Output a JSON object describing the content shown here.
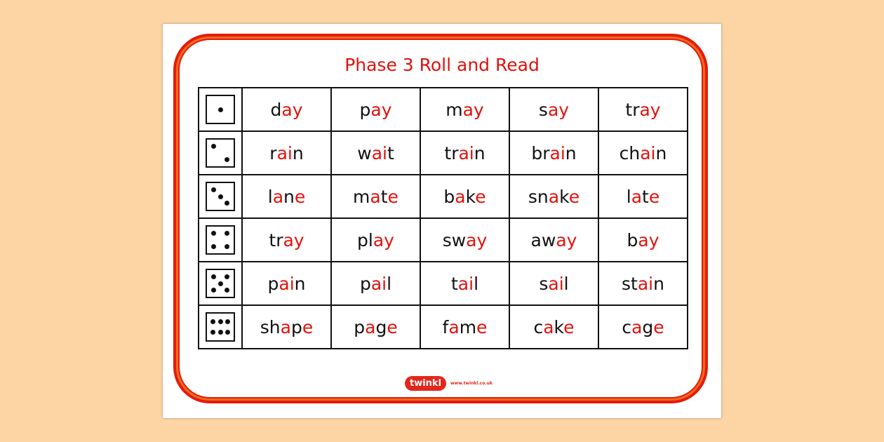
{
  "title": "Phase 3 Roll and Read",
  "colors": {
    "accent": "#e3120c",
    "background": "#fdd4a4"
  },
  "rows": [
    {
      "die": 1,
      "words": [
        [
          [
            "d",
            0
          ],
          [
            "ay",
            1
          ]
        ],
        [
          [
            "p",
            0
          ],
          [
            "ay",
            1
          ]
        ],
        [
          [
            "m",
            0
          ],
          [
            "ay",
            1
          ]
        ],
        [
          [
            "s",
            0
          ],
          [
            "ay",
            1
          ]
        ],
        [
          [
            "tr",
            0
          ],
          [
            "ay",
            1
          ]
        ]
      ]
    },
    {
      "die": 2,
      "words": [
        [
          [
            "r",
            0
          ],
          [
            "ai",
            1
          ],
          [
            "n",
            0
          ]
        ],
        [
          [
            "w",
            0
          ],
          [
            "ai",
            1
          ],
          [
            "t",
            0
          ]
        ],
        [
          [
            "tr",
            0
          ],
          [
            "ai",
            1
          ],
          [
            "n",
            0
          ]
        ],
        [
          [
            "br",
            0
          ],
          [
            "ai",
            1
          ],
          [
            "n",
            0
          ]
        ],
        [
          [
            "ch",
            0
          ],
          [
            "ai",
            1
          ],
          [
            "n",
            0
          ]
        ]
      ]
    },
    {
      "die": 3,
      "words": [
        [
          [
            "l",
            0
          ],
          [
            "a",
            1
          ],
          [
            "n",
            0
          ],
          [
            "e",
            1
          ]
        ],
        [
          [
            "m",
            0
          ],
          [
            "a",
            1
          ],
          [
            "t",
            0
          ],
          [
            "e",
            1
          ]
        ],
        [
          [
            "b",
            0
          ],
          [
            "a",
            1
          ],
          [
            "k",
            0
          ],
          [
            "e",
            1
          ]
        ],
        [
          [
            "sn",
            0
          ],
          [
            "a",
            1
          ],
          [
            "k",
            0
          ],
          [
            "e",
            1
          ]
        ],
        [
          [
            "l",
            0
          ],
          [
            "a",
            1
          ],
          [
            "t",
            0
          ],
          [
            "e",
            1
          ]
        ]
      ]
    },
    {
      "die": 4,
      "words": [
        [
          [
            "tr",
            0
          ],
          [
            "ay",
            1
          ]
        ],
        [
          [
            "pl",
            0
          ],
          [
            "ay",
            1
          ]
        ],
        [
          [
            "sw",
            0
          ],
          [
            "ay",
            1
          ]
        ],
        [
          [
            "aw",
            0
          ],
          [
            "ay",
            1
          ]
        ],
        [
          [
            "b",
            0
          ],
          [
            "ay",
            1
          ]
        ]
      ]
    },
    {
      "die": 5,
      "words": [
        [
          [
            "p",
            0
          ],
          [
            "ai",
            1
          ],
          [
            "n",
            0
          ]
        ],
        [
          [
            "p",
            0
          ],
          [
            "ai",
            1
          ],
          [
            "l",
            0
          ]
        ],
        [
          [
            "t",
            0
          ],
          [
            "ai",
            1
          ],
          [
            "l",
            0
          ]
        ],
        [
          [
            "s",
            0
          ],
          [
            "ai",
            1
          ],
          [
            "l",
            0
          ]
        ],
        [
          [
            "st",
            0
          ],
          [
            "ai",
            1
          ],
          [
            "n",
            0
          ]
        ]
      ]
    },
    {
      "die": 6,
      "words": [
        [
          [
            "sh",
            0
          ],
          [
            "a",
            1
          ],
          [
            "p",
            0
          ],
          [
            "e",
            1
          ]
        ],
        [
          [
            "p",
            0
          ],
          [
            "a",
            1
          ],
          [
            "g",
            0
          ],
          [
            "e",
            1
          ]
        ],
        [
          [
            "f",
            0
          ],
          [
            "a",
            1
          ],
          [
            "m",
            0
          ],
          [
            "e",
            1
          ]
        ],
        [
          [
            "c",
            0
          ],
          [
            "a",
            1
          ],
          [
            "k",
            0
          ],
          [
            "e",
            1
          ]
        ],
        [
          [
            "c",
            0
          ],
          [
            "a",
            1
          ],
          [
            "g",
            0
          ],
          [
            "e",
            1
          ]
        ]
      ]
    }
  ],
  "logo": {
    "brand": "twinkl",
    "url": "www.twinkl.co.uk"
  }
}
